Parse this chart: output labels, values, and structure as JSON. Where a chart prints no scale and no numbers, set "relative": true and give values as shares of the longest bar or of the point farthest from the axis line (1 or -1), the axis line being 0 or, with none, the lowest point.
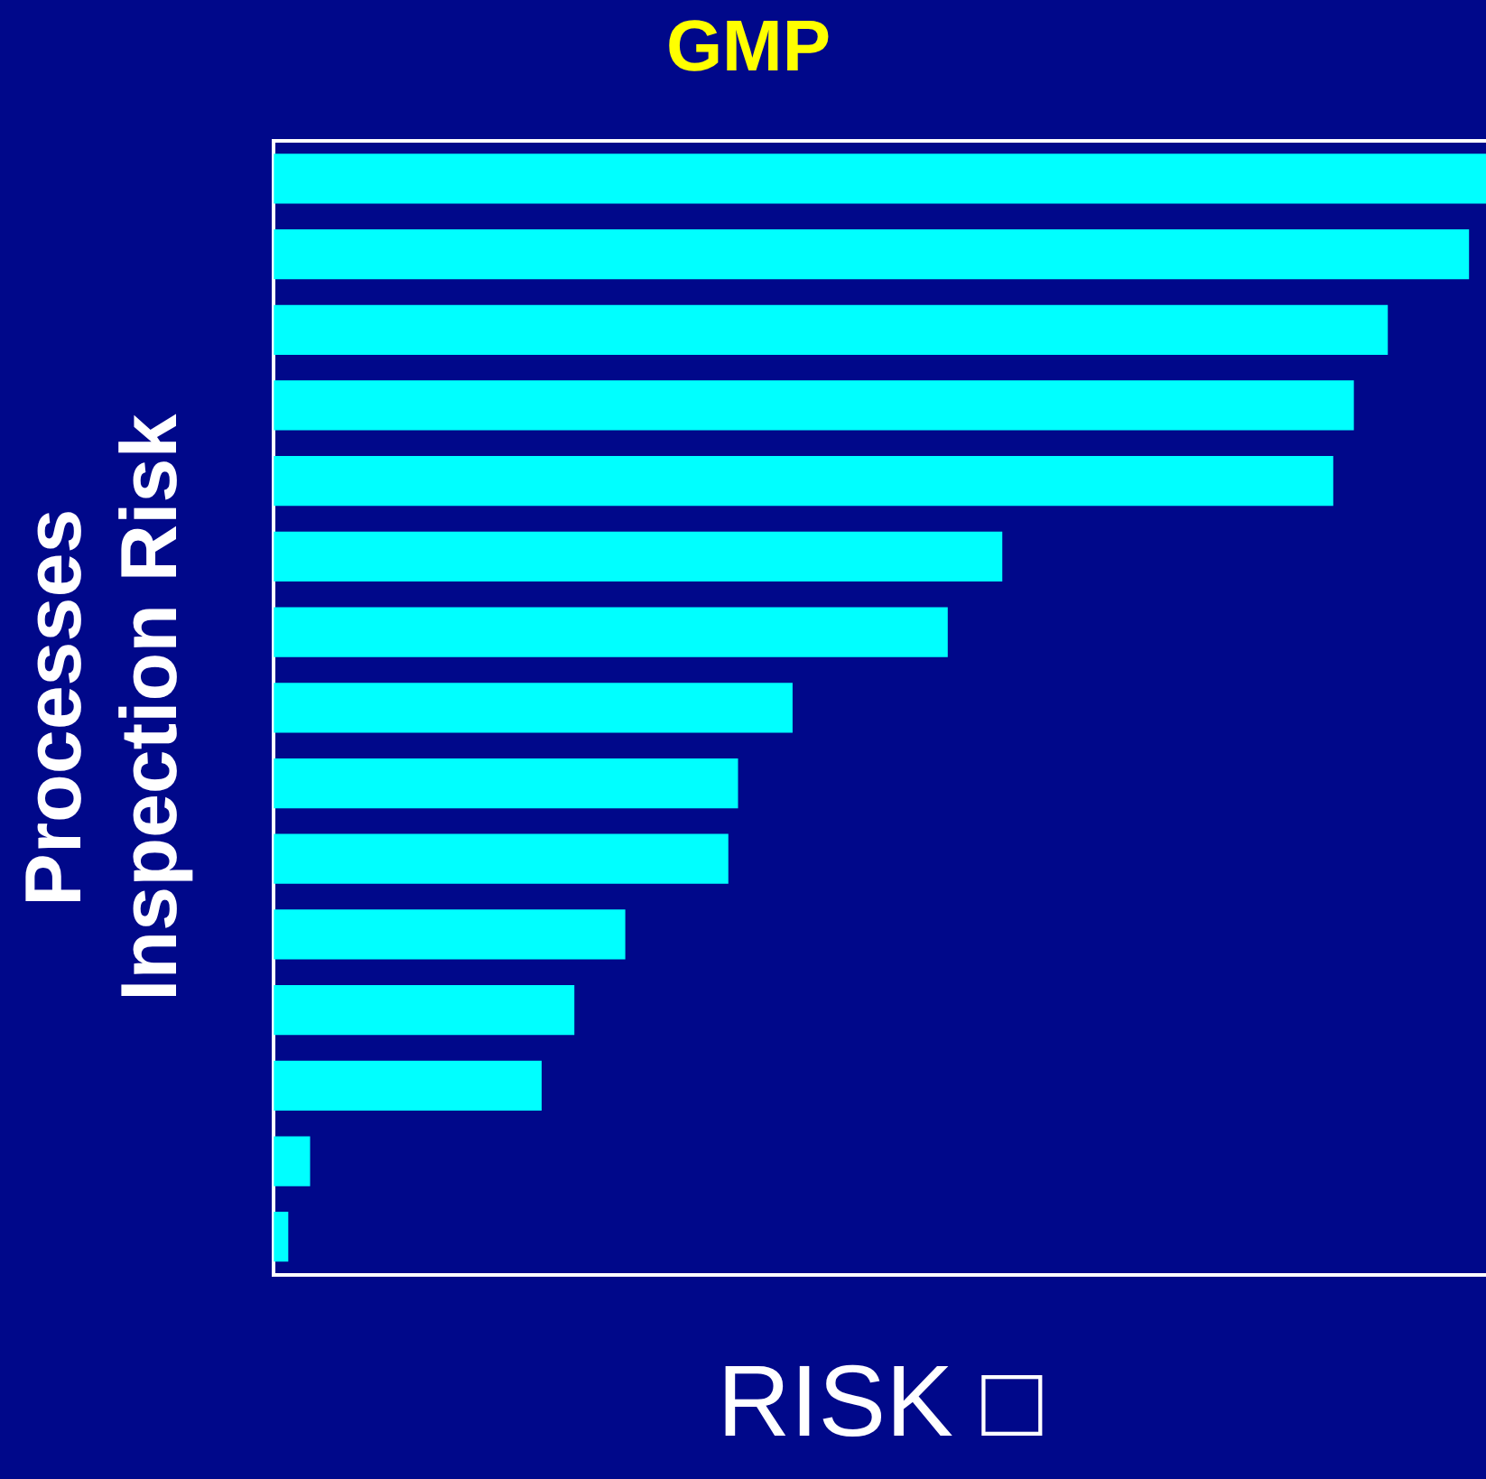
{
  "chart_data": {
    "type": "bar",
    "orientation": "horizontal",
    "relative": true,
    "title": "GMP",
    "xlabel": "RISK □",
    "ylabel": "Processes\nInspection Risk",
    "categories": [
      null,
      null,
      null,
      null,
      null,
      null,
      null,
      null,
      null,
      null,
      null,
      null,
      null,
      null,
      null
    ],
    "values": [
      1,
      0.986,
      0.919,
      0.891,
      0.874,
      0.601,
      0.556,
      0.428,
      0.383,
      0.375,
      0.29,
      0.248,
      0.221,
      0.03,
      0.012
    ],
    "color": "#00ffff",
    "grid": false,
    "legend": false
  }
}
